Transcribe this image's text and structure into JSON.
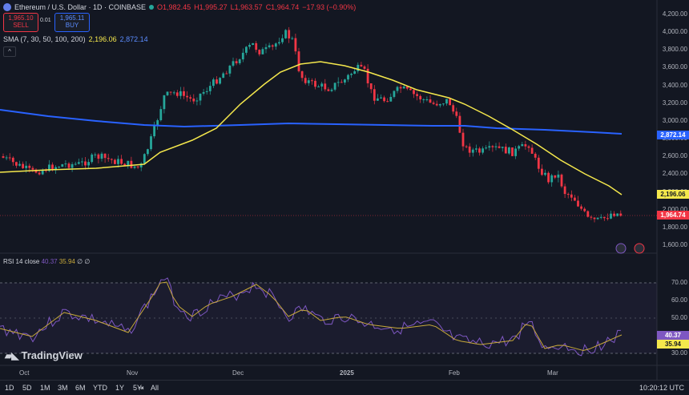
{
  "symbol": {
    "title": "Ethereum / U.S. Dollar · 1D · COINBASE",
    "icon": "ethereum-icon",
    "ohlc": {
      "o": "O1,982.45",
      "h": "H1,995.27",
      "l": "L1,963.57",
      "c": "C1,964.74",
      "chg": "−17.93 (−0.90%)"
    }
  },
  "trade": {
    "sell_price": "1,965.10",
    "sell_label": "SELL",
    "spread": "0.01",
    "buy_price": "1,965.11",
    "buy_label": "BUY"
  },
  "sma": {
    "label": "SMA (7, 30, 50, 100, 200)",
    "value1": "2,196.06",
    "value2": "2,872.14"
  },
  "collapse_label": "^",
  "price_axis": [
    "4,200.00",
    "4,000.00",
    "3,800.00",
    "3,600.00",
    "3,400.00",
    "3,200.00",
    "3,000.00",
    "2,800.00",
    "2,600.00",
    "2,400.00",
    "2,200.00",
    "2,000.00",
    "1,800.00",
    "1,600.00"
  ],
  "price_tags": {
    "sma200": "2,872.14",
    "sma50": "2,196.06",
    "last": "1,964.74"
  },
  "rsi": {
    "label": "RSI 14 close",
    "value1": "40.37",
    "value2": "35.94",
    "extra": "∅ ∅",
    "axis": [
      "70.00",
      "60.00",
      "50.00",
      "40.00",
      "30.00"
    ],
    "tag1": "40.37",
    "tag2": "35.94"
  },
  "time_axis": [
    "Oct",
    "Nov",
    "Dec",
    "2025",
    "Feb",
    "Mar"
  ],
  "timeframes": [
    "1D",
    "5D",
    "1M",
    "3M",
    "6M",
    "YTD",
    "1Y",
    "5Y",
    "All"
  ],
  "clock": "10:20:12 UTC",
  "logo_text": "TradingView",
  "colors": {
    "bg": "#131722",
    "up": "#26a69a",
    "down": "#f23645",
    "sma50": "#f5e84c",
    "sma200": "#2962ff",
    "rsi": "#7e57c2",
    "rsi_ma": "#c8a93a"
  }
}
